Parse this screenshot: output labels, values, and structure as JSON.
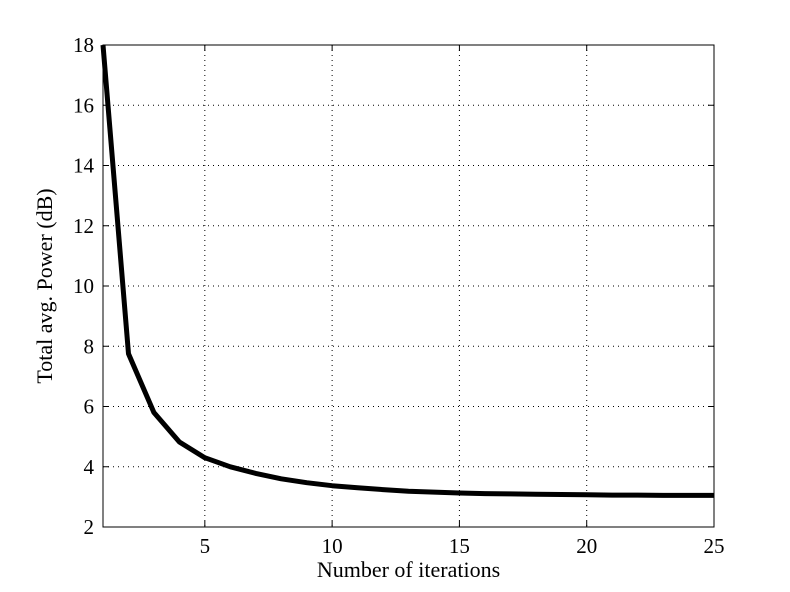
{
  "chart_data": {
    "type": "line",
    "title": "",
    "xlabel": "Number of iterations",
    "ylabel": "Total avg. Power (dB)",
    "xlim": [
      1,
      25
    ],
    "ylim": [
      2,
      18
    ],
    "xticks": [
      5,
      10,
      15,
      20,
      25
    ],
    "yticks": [
      2,
      4,
      6,
      8,
      10,
      12,
      14,
      16,
      18
    ],
    "grid": true,
    "grid_style": "dotted",
    "line_color": "#000000",
    "series": [
      {
        "x": [
          1,
          2,
          3,
          4,
          5,
          6,
          7,
          8,
          9,
          10,
          11,
          12,
          13,
          14,
          15,
          16,
          17,
          18,
          19,
          20,
          21,
          22,
          23,
          24,
          25
        ],
        "y": [
          18.0,
          7.75,
          5.8,
          4.82,
          4.3,
          4.0,
          3.78,
          3.6,
          3.47,
          3.37,
          3.3,
          3.24,
          3.19,
          3.16,
          3.13,
          3.11,
          3.1,
          3.09,
          3.08,
          3.07,
          3.06,
          3.06,
          3.05,
          3.05,
          3.05
        ]
      }
    ]
  }
}
